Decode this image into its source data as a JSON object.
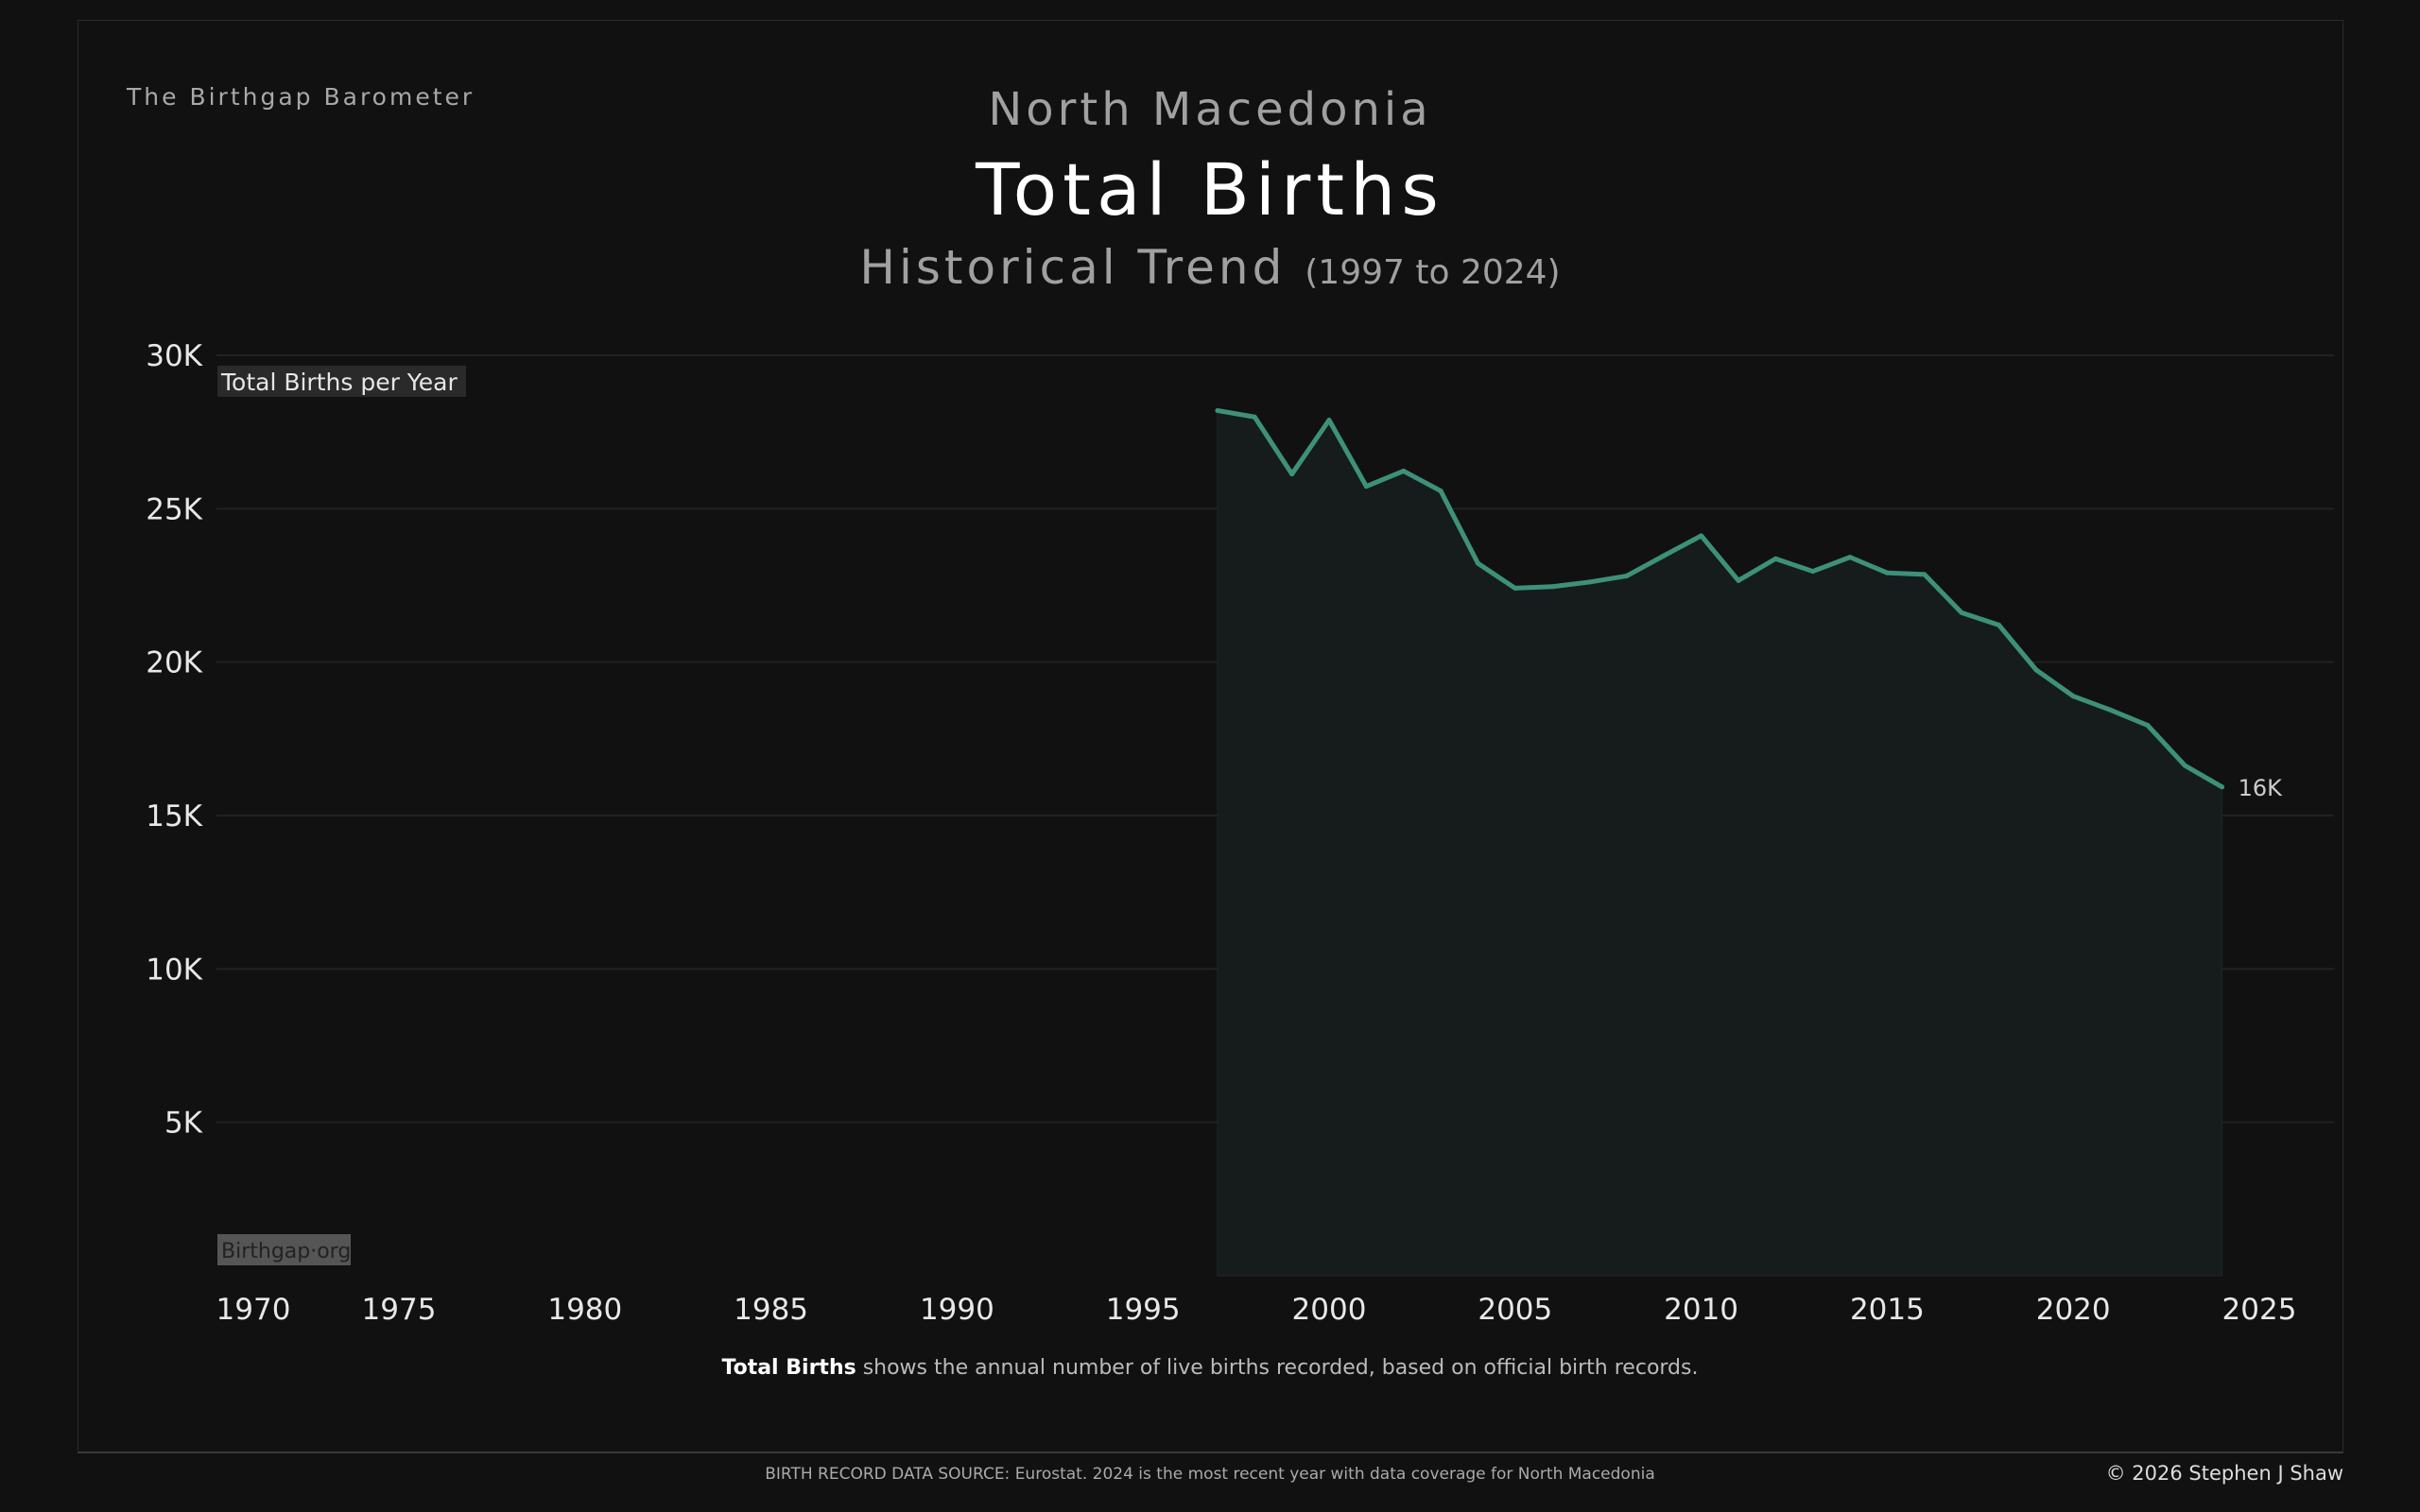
{
  "brand": "The Birthgap Barometer",
  "header": {
    "country": "North Macedonia",
    "title": "Total Births",
    "subtitle": "Historical Trend",
    "range": "(1997 to 2024)"
  },
  "caption": {
    "bold": "Total Births",
    "rest": " shows the annual number of live births recorded, based on official birth records."
  },
  "footer": {
    "source": "BIRTH RECORD DATA SOURCE: Eurostat. 2024 is the most recent year with data coverage for North Macedonia",
    "copyright": "© 2026 Stephen J Shaw"
  },
  "watermark": "Birthgap·org",
  "colors": {
    "line": "#3d9178",
    "area": "#161c1b",
    "grid": "#222222"
  },
  "chart_data": {
    "type": "area",
    "title": "Total Births",
    "ylabel": "Total Births per Year",
    "xlim": [
      1969,
      2026
    ],
    "ylim": [
      0,
      30000
    ],
    "x_ticks": [
      1970,
      1975,
      1980,
      1985,
      1990,
      1995,
      2000,
      2005,
      2010,
      2015,
      2020,
      2025
    ],
    "y_ticks": [
      {
        "v": 5000,
        "label": "5K"
      },
      {
        "v": 10000,
        "label": "10K"
      },
      {
        "v": 15000,
        "label": "15K"
      },
      {
        "v": 20000,
        "label": "20K"
      },
      {
        "v": 25000,
        "label": "25K"
      },
      {
        "v": 30000,
        "label": "30K"
      }
    ],
    "grid": true,
    "end_label": "16K",
    "series": [
      {
        "name": "Total Births",
        "x": [
          1997,
          1998,
          1999,
          2000,
          2001,
          2002,
          2003,
          2004,
          2005,
          2006,
          2007,
          2008,
          2009,
          2010,
          2011,
          2012,
          2013,
          2014,
          2015,
          2016,
          2017,
          2018,
          2019,
          2020,
          2021,
          2022,
          2023,
          2024
        ],
        "values": [
          28200,
          27990,
          26130,
          27890,
          25730,
          26230,
          25580,
          23220,
          22410,
          22460,
          22610,
          22810,
          23470,
          24120,
          22660,
          23370,
          22960,
          23420,
          22910,
          22860,
          21610,
          21210,
          19750,
          18890,
          18440,
          17940,
          16630,
          15930
        ]
      }
    ]
  }
}
